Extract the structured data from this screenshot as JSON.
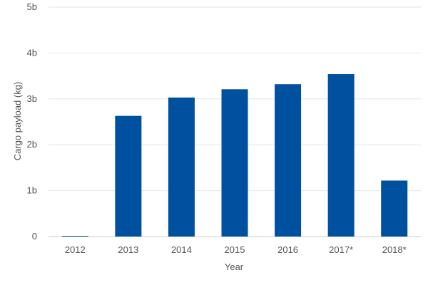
{
  "chart_data": {
    "type": "bar",
    "title": "",
    "xlabel": "Year",
    "ylabel": "Cargo payload (kg)",
    "categories": [
      "2012",
      "2013",
      "2014",
      "2015",
      "2016",
      "2017*",
      "2018*"
    ],
    "values": [
      0.01,
      2.63,
      3.03,
      3.21,
      3.32,
      3.54,
      1.22
    ],
    "value_unit": "billion kg",
    "ylim": [
      0,
      5
    ],
    "yticks": [
      0,
      1,
      2,
      3,
      4,
      5
    ],
    "ytick_labels": [
      "0",
      "1b",
      "2b",
      "3b",
      "4b",
      "5b"
    ],
    "grid": true,
    "legend": "none",
    "bar_color": "#0050a0"
  }
}
